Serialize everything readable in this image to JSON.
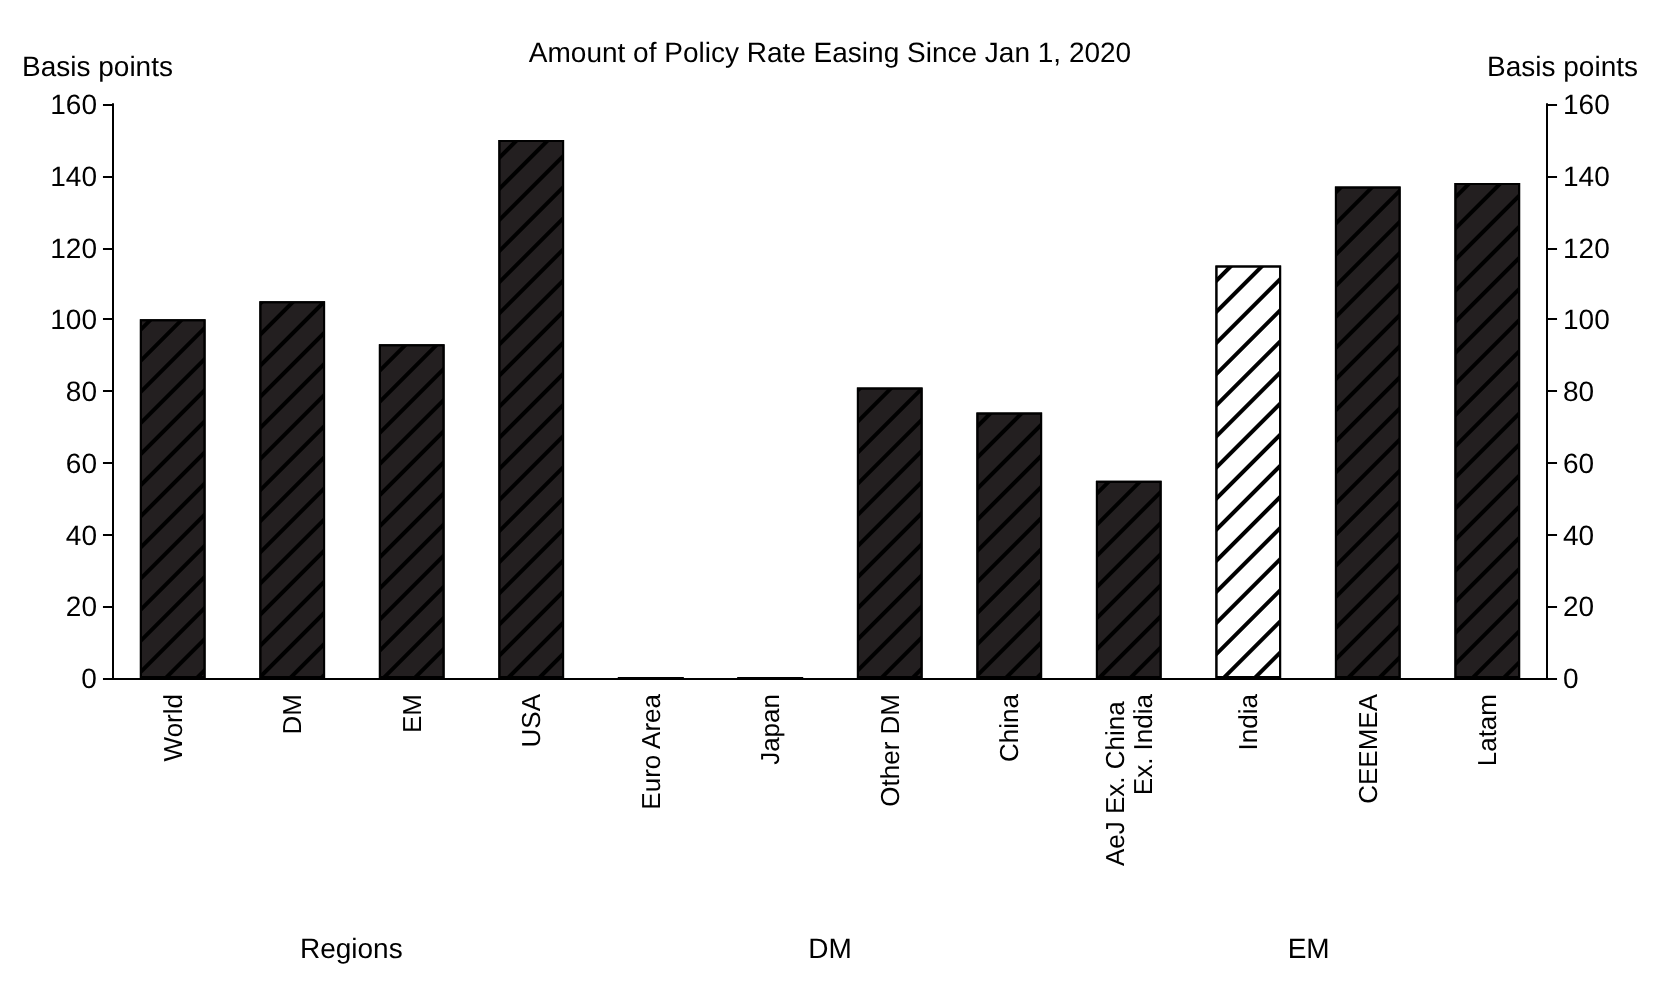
{
  "chart_data": {
    "type": "bar",
    "title": "Amount of Policy Rate Easing Since Jan 1, 2020",
    "ylabel": "Basis points",
    "y2label": "Basis points",
    "categories": [
      "World",
      "DM",
      "EM",
      "USA",
      "Euro Area",
      "Japan",
      "Other DM",
      "China",
      "AeJ Ex. China Ex. India",
      "India",
      "CEEMEA",
      "Latam"
    ],
    "values": [
      100,
      105,
      93,
      150,
      0,
      0,
      81,
      74,
      55,
      115,
      137,
      138
    ],
    "colors": [
      "#231f20",
      "#231f20",
      "#231f20",
      "#231f20",
      "#231f20",
      "#231f20",
      "#231f20",
      "#231f20",
      "#231f20",
      "#ffffff",
      "#231f20",
      "#231f20"
    ],
    "ylim": [
      0,
      160
    ],
    "yticks": [
      0,
      20,
      40,
      60,
      80,
      100,
      120,
      140,
      160
    ],
    "y2lim": [
      0,
      160
    ],
    "y2ticks": [
      0,
      20,
      40,
      60,
      80,
      100,
      120,
      140,
      160
    ],
    "annotations": [
      "Regions",
      "DM",
      "EM"
    ],
    "grid": false
  }
}
